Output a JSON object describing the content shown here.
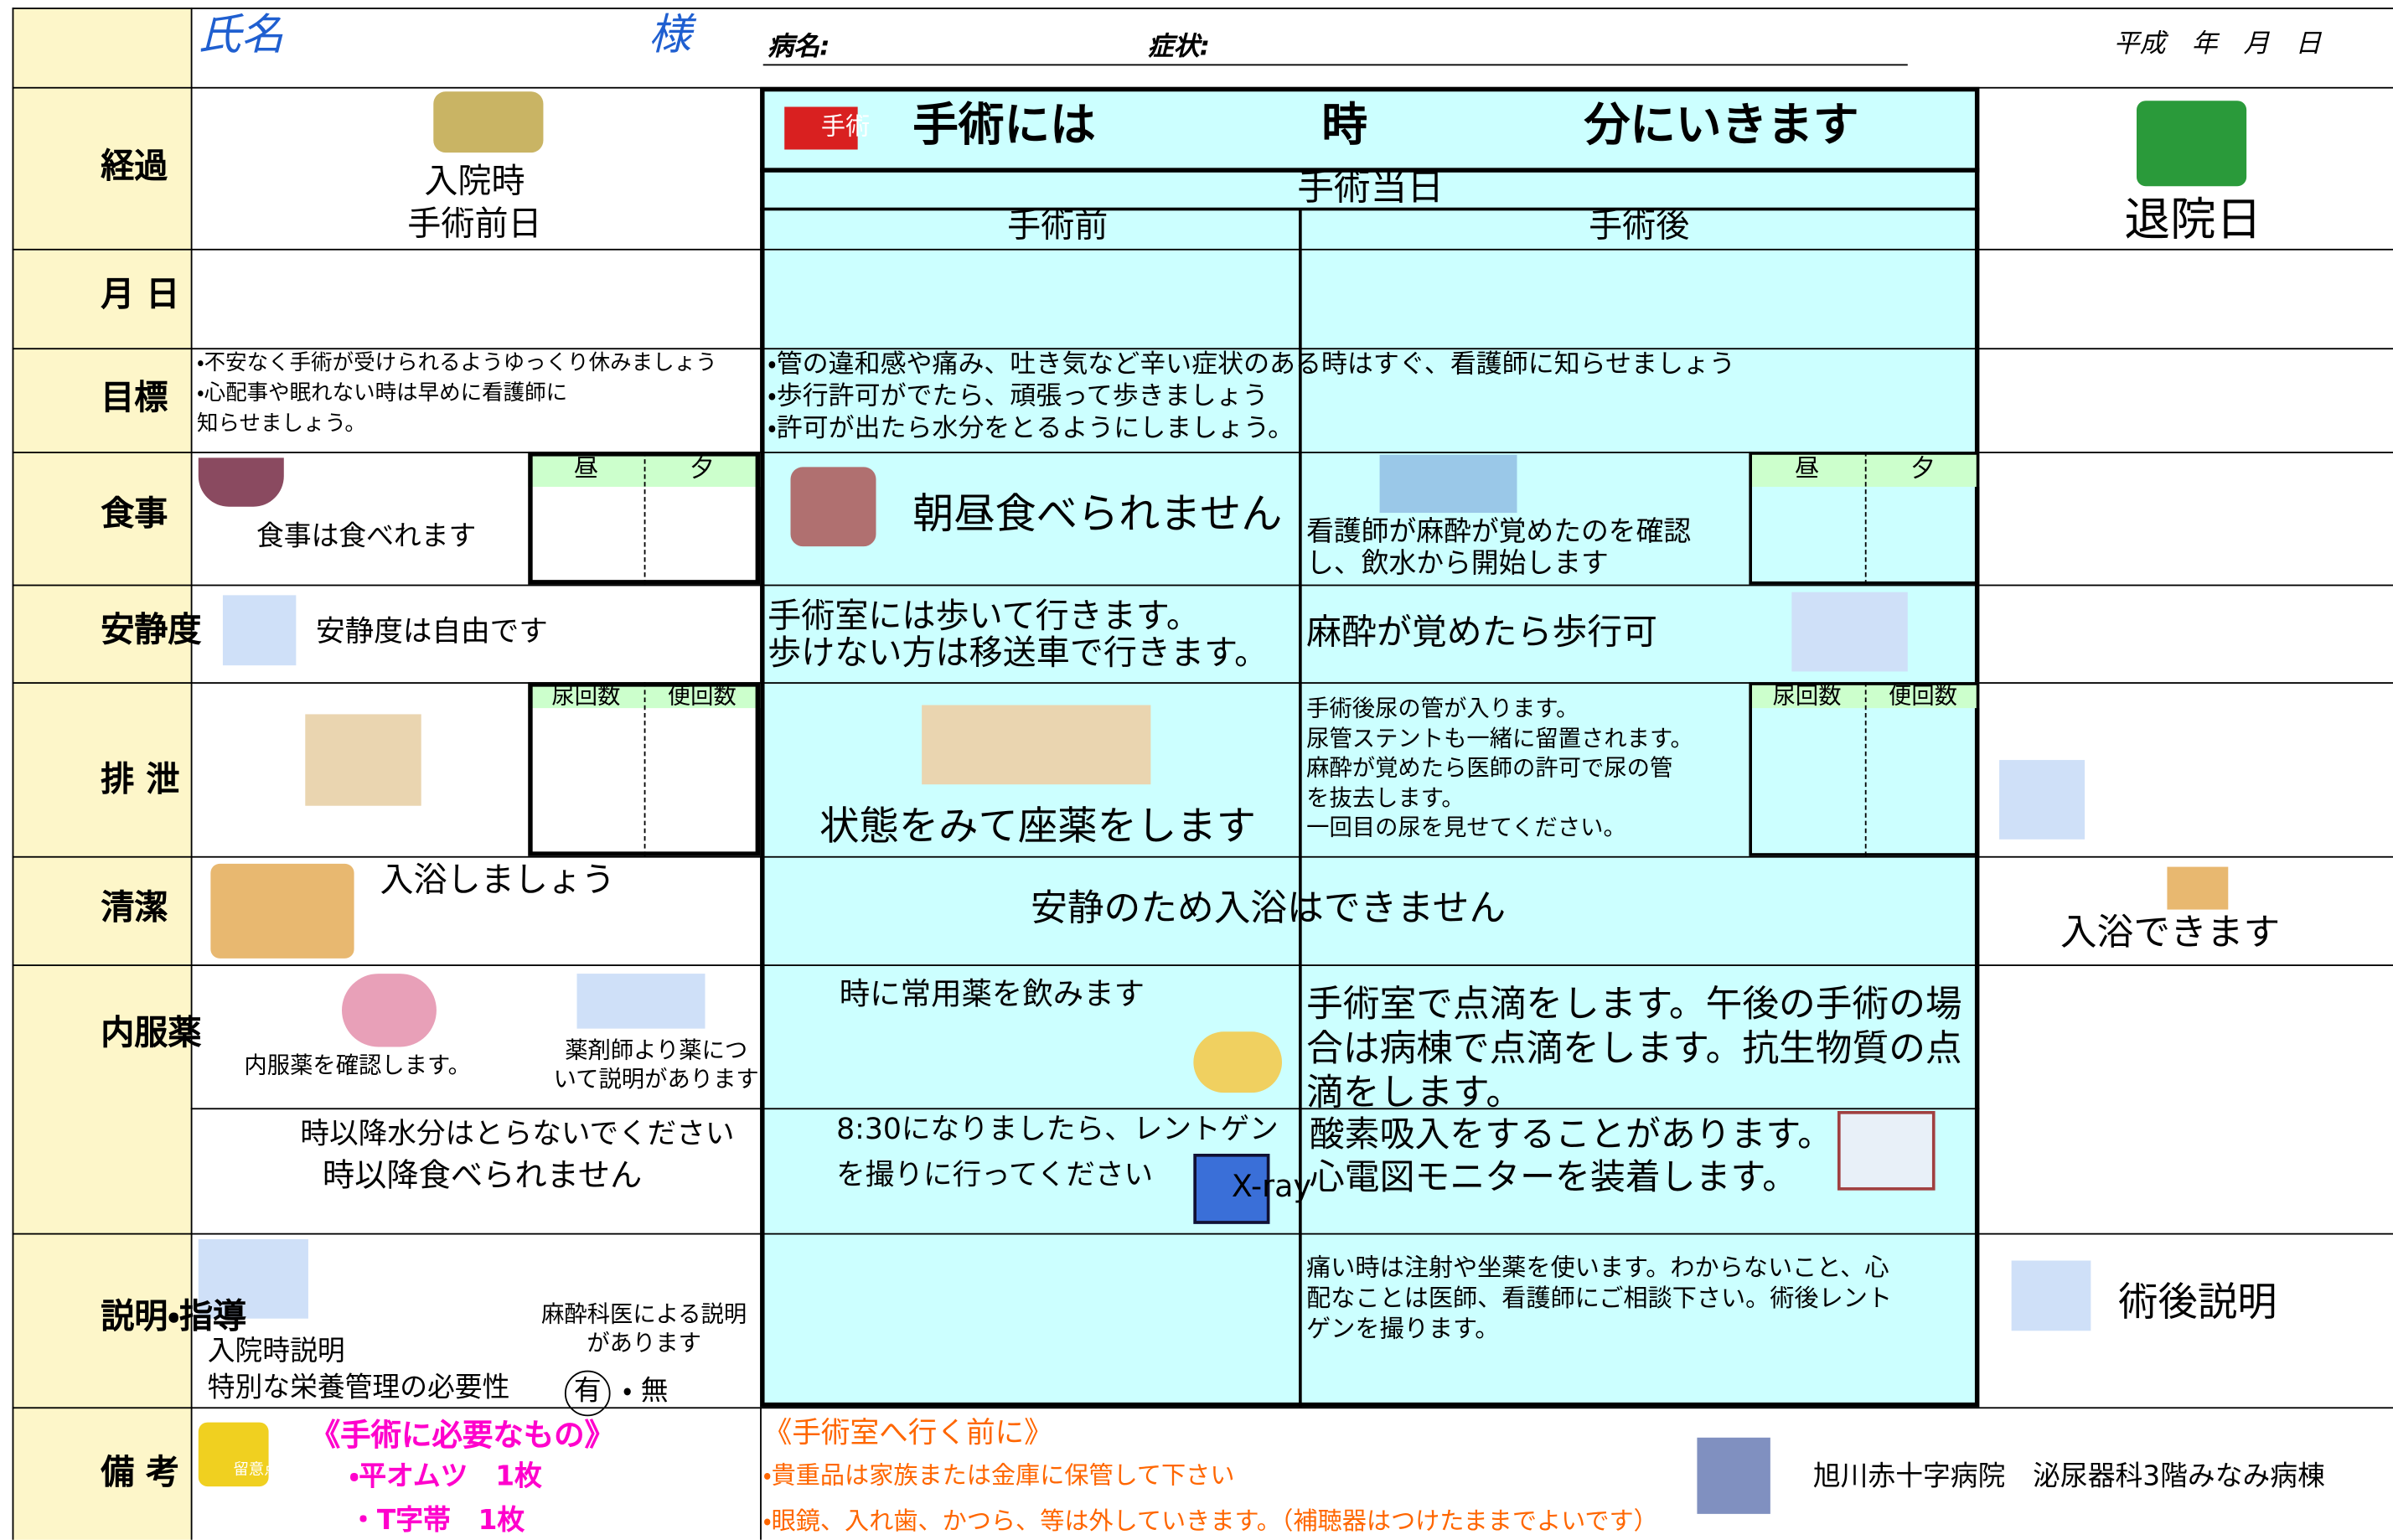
{
  "header": {
    "name": "氏名",
    "sama": "様",
    "disease": "病名:",
    "symptom": "症状:",
    "date": "平成　年　月　日"
  },
  "labels": [
    "経過",
    "月 日",
    "目標",
    "食事",
    "安静度",
    "排 泄",
    "清潔",
    "内服薬",
    "説明・指導",
    "備 考"
  ],
  "progress": {
    "admission": "入院時",
    "pre_op_day": "手術前日",
    "surgery_icon": "手術",
    "surgery_time": "手術には",
    "hour": "時",
    "minute": "分にいきます",
    "surgery_day": "手術当日",
    "before": "手術前",
    "after": "手術後",
    "discharge": "退院日"
  },
  "goals": {
    "pre": [
      "・不安なく手術が受けられるようゆっくり休みましょう",
      "・心配事や眠れない時は早めに看護師に",
      "知らせましょう。"
    ],
    "day": [
      "・管の違和感や痛み、吐き気など辛い症状のある時はすぐ、看護師に知らせましょう",
      "・歩行許可がでたら、頑張って歩きましょう",
      "・許可が出たら水分をとるようにしましょう。"
    ]
  },
  "meal": {
    "pre": "食事は食べれます",
    "lunch": "昼",
    "dinner": "夕",
    "before": "朝昼食べられません",
    "after": [
      "看護師が麻酔が覚めたのを確認",
      "し、飲水から開始します"
    ],
    "lunch_after": "昼",
    "dinner_after": "夕"
  },
  "rest": {
    "pre": "安静度は自由です",
    "before": [
      "手術室には歩いて行きます。",
      "歩けない方は移送車で行きます。"
    ],
    "after": "麻酔が覚めたら歩行可"
  },
  "excretion": {
    "urine": "尿回数",
    "stool": "便回数",
    "before": "状態をみて座薬をします",
    "after": [
      "手術後尿の管が入ります。",
      "尿管ステントも一緒に留置されます。",
      "麻酔が覚めたら医師の許可で尿の管",
      "を抜去します。",
      "一回目の尿を見せてください。"
    ],
    "urine_after": "尿回数",
    "stool_after": "便回数"
  },
  "hygiene": {
    "pre": "入浴しましょう",
    "day": "安静のため入浴はできません",
    "post": "入浴できます"
  },
  "meds": {
    "check": "内服薬を確認します。",
    "pharmacist": [
      "薬剤師より薬につ",
      "いて説明があります"
    ],
    "usual": "時に常用薬を飲みます",
    "drip": [
      "手術室で点滴をします。午後の手術の場",
      "合は病棟で点滴をします。抗生物質の点",
      "滴をします。"
    ],
    "water": "時以降水分はとらないでください",
    "food": "時以降食べられません",
    "xray": [
      "8:30になりましたら、レントゲン",
      "を撮りに行ってください"
    ],
    "xray_icon": "X-ray",
    "oxygen": [
      "酸素吸入をすることがあります。",
      "心電図モニターを装着します。"
    ]
  },
  "guidance": {
    "admission": "入院時説明",
    "anesthesia": [
      "麻酔科医による説明",
      "があります"
    ],
    "nutrition": "特別な栄養管理の必要性",
    "yes": "有",
    "no": "・ 無",
    "post_op": [
      "痛い時は注射や坐薬を使います。わからないこと、心",
      "配なことは医師、看護師にご相談下さい。術後レント",
      "ゲンを撮ります。"
    ],
    "post_explain": "術後説明"
  },
  "remarks": {
    "memo": "留意点",
    "needs_title": "《手術に必要なもの》",
    "needs": [
      "・平オムツ　1枚",
      "・T字帯　1枚"
    ],
    "before_title": "《手術室へ行く前に》",
    "before": [
      "・貴重品は家族または金庫に保管して下さい",
      "・眼鏡、入れ歯、かつら、等は外していきます。（補聴器はつけたままでよいです）"
    ],
    "hospital": "旭川赤十字病院　泌尿器科3階みなみ病棟"
  }
}
